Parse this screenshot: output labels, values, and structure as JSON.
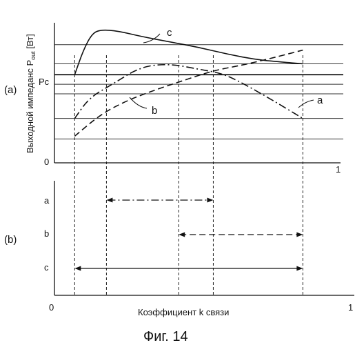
{
  "figure": {
    "caption": "Фиг. 14",
    "panel_a_tag": "(a)",
    "panel_b_tag": "(b)"
  },
  "chart_data": [
    {
      "type": "line",
      "panel": "(a)",
      "ylabel": "Выходной импеданс P",
      "ylabel_subscript": "out",
      "ylabel_unit": " [Вт]",
      "x_tick_labels": [
        "0",
        "1"
      ],
      "y_special_label": "Pc",
      "pc_level": 0.64,
      "xlim": [
        0,
        1
      ],
      "ylim": [
        0,
        1
      ],
      "y_gridlines": [
        0.17,
        0.32,
        0.5,
        0.57,
        0.72,
        0.86
      ],
      "x_markers": [
        0.07,
        0.18,
        0.43,
        0.55,
        0.86
      ],
      "grid": true,
      "series": [
        {
          "name": "a",
          "style": "dash-dot",
          "points": [
            [
              0.07,
              0.32
            ],
            [
              0.12,
              0.47
            ],
            [
              0.2,
              0.57
            ],
            [
              0.3,
              0.7
            ],
            [
              0.4,
              0.72
            ],
            [
              0.5,
              0.68
            ],
            [
              0.58,
              0.65
            ],
            [
              0.65,
              0.58
            ],
            [
              0.75,
              0.46
            ],
            [
              0.86,
              0.32
            ]
          ]
        },
        {
          "name": "b",
          "style": "dashed",
          "points": [
            [
              0.07,
              0.19
            ],
            [
              0.16,
              0.35
            ],
            [
              0.25,
              0.45
            ],
            [
              0.35,
              0.53
            ],
            [
              0.45,
              0.6
            ],
            [
              0.55,
              0.67
            ],
            [
              0.65,
              0.71
            ],
            [
              0.75,
              0.76
            ],
            [
              0.86,
              0.82
            ]
          ]
        },
        {
          "name": "c",
          "style": "solid",
          "points": [
            [
              0.07,
              0.64
            ],
            [
              0.1,
              0.82
            ],
            [
              0.13,
              0.94
            ],
            [
              0.16,
              0.97
            ],
            [
              0.22,
              0.96
            ],
            [
              0.3,
              0.92
            ],
            [
              0.4,
              0.88
            ],
            [
              0.5,
              0.84
            ],
            [
              0.6,
              0.79
            ],
            [
              0.7,
              0.75
            ],
            [
              0.8,
              0.73
            ],
            [
              0.86,
              0.72
            ]
          ]
        }
      ]
    },
    {
      "type": "range",
      "panel": "(b)",
      "xlabel": "Коэффициент k связи",
      "x_tick_labels": [
        "0",
        "1"
      ],
      "xlim": [
        0,
        1
      ],
      "categories": [
        "a",
        "b",
        "c"
      ],
      "ranges": [
        {
          "name": "a",
          "start": 0.18,
          "end": 0.55,
          "style": "dash-dot"
        },
        {
          "name": "b",
          "start": 0.43,
          "end": 0.86,
          "style": "dashed"
        },
        {
          "name": "c",
          "start": 0.07,
          "end": 0.86,
          "style": "solid"
        }
      ]
    }
  ]
}
